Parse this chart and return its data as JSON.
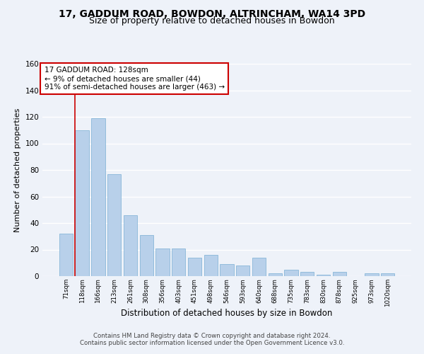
{
  "title_line1": "17, GADDUM ROAD, BOWDON, ALTRINCHAM, WA14 3PD",
  "title_line2": "Size of property relative to detached houses in Bowdon",
  "xlabel": "Distribution of detached houses by size in Bowdon",
  "ylabel": "Number of detached properties",
  "footer_line1": "Contains HM Land Registry data © Crown copyright and database right 2024.",
  "footer_line2": "Contains public sector information licensed under the Open Government Licence v3.0.",
  "bar_labels": [
    "71sqm",
    "118sqm",
    "166sqm",
    "213sqm",
    "261sqm",
    "308sqm",
    "356sqm",
    "403sqm",
    "451sqm",
    "498sqm",
    "546sqm",
    "593sqm",
    "640sqm",
    "688sqm",
    "735sqm",
    "783sqm",
    "830sqm",
    "878sqm",
    "925sqm",
    "973sqm",
    "1020sqm"
  ],
  "bar_values": [
    32,
    110,
    119,
    77,
    46,
    31,
    21,
    21,
    14,
    16,
    9,
    8,
    14,
    2,
    5,
    3,
    1,
    3,
    0,
    2,
    2
  ],
  "bar_color": "#b8d0ea",
  "bar_edgecolor": "#7aafd4",
  "vline_x_index": 0.575,
  "annotation_text": "17 GADDUM ROAD: 128sqm\n← 9% of detached houses are smaller (44)\n91% of semi-detached houses are larger (463) →",
  "annotation_box_color": "#ffffff",
  "annotation_box_edgecolor": "#cc0000",
  "vline_color": "#cc0000",
  "ylim": [
    0,
    160
  ],
  "yticks": [
    0,
    20,
    40,
    60,
    80,
    100,
    120,
    140,
    160
  ],
  "bg_color": "#eef2f9",
  "grid_color": "#ffffff"
}
